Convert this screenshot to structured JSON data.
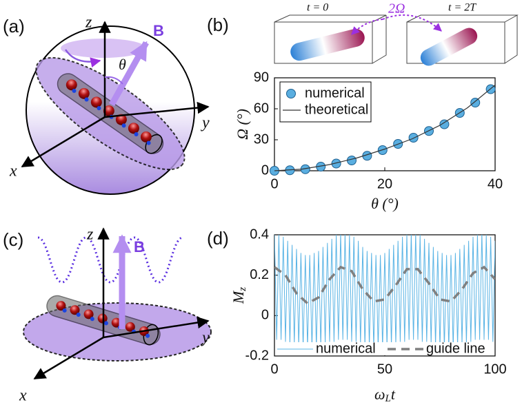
{
  "chart_data": [
    {
      "type": "scatter",
      "panel_label": "(b)",
      "xlabel": "θ (°)",
      "ylabel": "Ω (°)",
      "xlim": [
        0,
        40
      ],
      "xticks": [
        0,
        20,
        40
      ],
      "ylim": [
        0,
        90
      ],
      "yticks": [
        0,
        30,
        60,
        90
      ],
      "legend": "upper left",
      "annotations": [
        "t = 0",
        "t = 2T",
        "2Ω"
      ],
      "series": [
        {
          "name": "numerical",
          "type": "scatter",
          "color": "#5aaee0",
          "x": [
            0,
            2.8,
            5.6,
            8.4,
            11.2,
            14,
            16.8,
            19.6,
            22.4,
            25.2,
            28,
            30.8,
            33.6,
            36.4,
            39.2
          ],
          "values": [
            0,
            0.5,
            1.5,
            4,
            7,
            10,
            14.5,
            20,
            26,
            32,
            38.5,
            45,
            56,
            66,
            79
          ]
        },
        {
          "name": "theoretical",
          "type": "line",
          "color": "#333333",
          "x": [
            0,
            5,
            10,
            15,
            20,
            25,
            30,
            35,
            40
          ],
          "values": [
            0,
            1.6,
            6,
            12.5,
            21,
            31,
            44,
            61,
            83
          ]
        }
      ]
    },
    {
      "type": "line",
      "panel_label": "(d)",
      "xlabel": "ωLt",
      "ylabel": "Mz",
      "xlim": [
        0,
        100
      ],
      "xticks": [
        0,
        50,
        100
      ],
      "ylim": [
        -0.2,
        0.4
      ],
      "yticks": [
        -0.2,
        0,
        0.2,
        0.4
      ],
      "legend": "lower center",
      "series": [
        {
          "name": "numerical",
          "style": "solid",
          "color": "#5ab4e5",
          "x": [
            0,
            1,
            2,
            3,
            4,
            5,
            6,
            7,
            8,
            9,
            10,
            11,
            12,
            13,
            14,
            15,
            16,
            17,
            18,
            19,
            20,
            21,
            22,
            23,
            24,
            25,
            26,
            27,
            28,
            29,
            30,
            31,
            32,
            33,
            34,
            35,
            36,
            37,
            38,
            39,
            40,
            41,
            42,
            43,
            44,
            45,
            46,
            47,
            48,
            49,
            50,
            51,
            52,
            53,
            54,
            55,
            56,
            57,
            58,
            59,
            60,
            61,
            62,
            63,
            64,
            65,
            66,
            67,
            68,
            69,
            70,
            71,
            72,
            73,
            74,
            75,
            76,
            77,
            78,
            79,
            80,
            81,
            82,
            83,
            84,
            85,
            86,
            87,
            88,
            89,
            90,
            91,
            92,
            93,
            94,
            95,
            96,
            97,
            98,
            99,
            100
          ],
          "values": [
            0.41,
            -0.12,
            0.4,
            -0.12,
            0.39,
            -0.13,
            0.37,
            -0.14,
            0.35,
            -0.14,
            0.33,
            -0.15,
            0.31,
            -0.16,
            0.3,
            -0.16,
            0.3,
            -0.16,
            0.31,
            -0.16,
            0.32,
            -0.15,
            0.34,
            -0.14,
            0.36,
            -0.13,
            0.38,
            -0.13,
            0.4,
            -0.12,
            0.41,
            -0.12,
            0.41,
            -0.12,
            0.4,
            -0.13,
            0.39,
            -0.13,
            0.37,
            -0.14,
            0.34,
            -0.15,
            0.32,
            -0.15,
            0.31,
            -0.16,
            0.3,
            -0.16,
            0.3,
            -0.16,
            0.31,
            -0.15,
            0.33,
            -0.15,
            0.35,
            -0.14,
            0.37,
            -0.13,
            0.39,
            -0.13,
            0.4,
            -0.12,
            0.41,
            -0.12,
            0.41,
            -0.12,
            0.4,
            -0.13,
            0.38,
            -0.13,
            0.36,
            -0.14,
            0.34,
            -0.15,
            0.32,
            -0.16,
            0.31,
            -0.16,
            0.3,
            -0.16,
            0.3,
            -0.16,
            0.31,
            -0.15,
            0.33,
            -0.14,
            0.35,
            -0.14,
            0.37,
            -0.13,
            0.39,
            -0.12,
            0.4,
            -0.12,
            0.41,
            -0.12,
            0.4,
            -0.12,
            0.39,
            -0.13,
            0.37
          ]
        },
        {
          "name": "guide line",
          "style": "dashed",
          "color": "#808080",
          "x": [
            0,
            5,
            10,
            15,
            20,
            25,
            30,
            35,
            40,
            45,
            50,
            55,
            60,
            65,
            70,
            75,
            80,
            85,
            90,
            95,
            100
          ],
          "values": [
            0.24,
            0.2,
            0.11,
            0.06,
            0.09,
            0.18,
            0.24,
            0.22,
            0.13,
            0.07,
            0.08,
            0.15,
            0.23,
            0.23,
            0.16,
            0.08,
            0.07,
            0.13,
            0.21,
            0.24,
            0.18
          ]
        }
      ]
    }
  ],
  "diagrams": [
    {
      "label": "(a)",
      "axes": [
        "z",
        "y",
        "x"
      ],
      "field": "B",
      "angle": "θ"
    },
    {
      "label": "(c)",
      "axes": [
        "z",
        "y",
        "x"
      ],
      "field": "B"
    }
  ]
}
